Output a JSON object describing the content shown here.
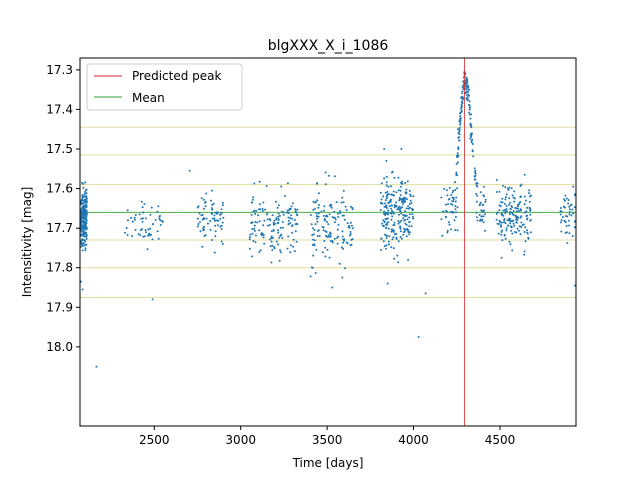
{
  "chart_data": {
    "type": "scatter",
    "title": "blgXXX_X_i_1086",
    "xlabel": "Time [days]",
    "ylabel": "Intensitivity [mag]",
    "xlim": [
      2070,
      4940
    ],
    "ylim": [
      18.2,
      17.27
    ],
    "y_inverted": true,
    "xticks": [
      2500,
      3000,
      3500,
      4000,
      4500
    ],
    "yticks": [
      17.3,
      17.4,
      17.5,
      17.6,
      17.7,
      17.8,
      17.9,
      18.0
    ],
    "grid": false,
    "legend_position": "top-left",
    "legend": [
      {
        "label": "Predicted peak",
        "color": "#d62728",
        "style": "vertical-line"
      },
      {
        "label": "Mean",
        "color": "#2ca02c",
        "style": "horizontal-line"
      }
    ],
    "predicted_peak_x": 4295,
    "mean_y": 17.66,
    "sigma_lines": [
      17.445,
      17.515,
      17.59,
      17.73,
      17.8,
      17.875
    ],
    "sigma_line_color": "#dede9a",
    "point_color": "#1f77b4",
    "seasons": [
      {
        "x": [
          2070,
          2110
        ],
        "mean": 17.672,
        "sd": 0.035,
        "n": 260
      },
      {
        "x": [
          2330,
          2560
        ],
        "mean": 17.69,
        "sd": 0.03,
        "n": 55
      },
      {
        "x": [
          2750,
          2900
        ],
        "mean": 17.675,
        "sd": 0.035,
        "n": 70
      },
      {
        "x": [
          3050,
          3330
        ],
        "mean": 17.685,
        "sd": 0.045,
        "n": 150
      },
      {
        "x": [
          3400,
          3650
        ],
        "mean": 17.7,
        "sd": 0.05,
        "n": 140
      },
      {
        "x": [
          3810,
          4000
        ],
        "mean": 17.665,
        "sd": 0.045,
        "n": 230
      },
      {
        "x": [
          4160,
          4260
        ],
        "mean": 17.66,
        "sd": 0.03,
        "n": 40
      },
      {
        "x": [
          4360,
          4420
        ],
        "mean": 17.655,
        "sd": 0.03,
        "n": 30
      },
      {
        "x": [
          4480,
          4680
        ],
        "mean": 17.67,
        "sd": 0.035,
        "n": 170
      },
      {
        "x": [
          4850,
          4940
        ],
        "mean": 17.67,
        "sd": 0.035,
        "n": 45
      }
    ],
    "peak_event": {
      "x_center": 4300,
      "width": 35,
      "peak_mag": 17.33,
      "base_mag": 17.66,
      "n": 160
    },
    "outliers": [
      {
        "x": 2165,
        "y": 18.05
      },
      {
        "x": 4030,
        "y": 17.975
      },
      {
        "x": 2085,
        "y": 17.855
      },
      {
        "x": 2490,
        "y": 17.88
      },
      {
        "x": 3530,
        "y": 17.85
      },
      {
        "x": 3830,
        "y": 17.5
      },
      {
        "x": 3930,
        "y": 17.5
      },
      {
        "x": 4070,
        "y": 17.865
      },
      {
        "x": 2070,
        "y": 17.835
      },
      {
        "x": 2705,
        "y": 17.555
      },
      {
        "x": 4940,
        "y": 17.845
      },
      {
        "x": 3850,
        "y": 17.84
      }
    ]
  }
}
